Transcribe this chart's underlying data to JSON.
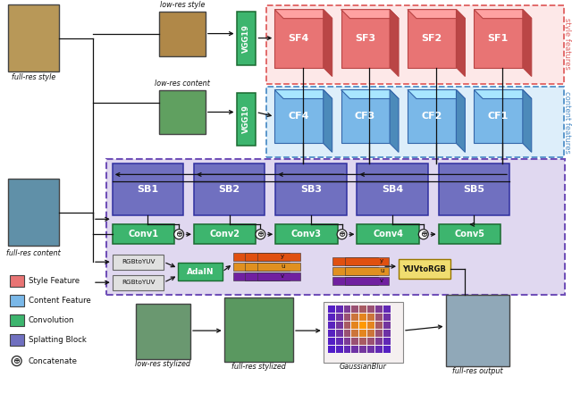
{
  "bg_color": "#ffffff",
  "style_feature_color": "#e87474",
  "content_feature_color": "#7ab8e8",
  "conv_color": "#3db56e",
  "splatting_color": "#7070c0",
  "style_box_bg": "#fde8e8",
  "content_box_bg": "#ddeefa",
  "main_box_bg": "#e0d8f0",
  "style_border": "#e06060",
  "content_border": "#5090c8",
  "main_border": "#7050b8",
  "vgg_color": "#3db56e",
  "yuv_to_rgb_color": "#f0dd70",
  "sf_labels": [
    "SF4",
    "SF3",
    "SF2",
    "SF1"
  ],
  "cf_labels": [
    "CF4",
    "CF3",
    "CF2",
    "CF1"
  ],
  "sb_labels": [
    "SB1",
    "SB2",
    "SB3",
    "SB4",
    "SB5"
  ],
  "conv_labels": [
    "Conv1",
    "Conv2",
    "Conv3",
    "Conv4",
    "Conv5"
  ],
  "legend_items": [
    {
      "label": "Style Feature",
      "color": "#e87474"
    },
    {
      "label": "Content Feature",
      "color": "#7ab8e8"
    },
    {
      "label": "Convolution",
      "color": "#3db56e"
    },
    {
      "label": "Splatting Block",
      "color": "#7070c0"
    }
  ],
  "yuv_colors": [
    "#e05010",
    "#e09020",
    "#7020a0"
  ],
  "yuv_labels": [
    "y",
    "u",
    "v"
  ]
}
